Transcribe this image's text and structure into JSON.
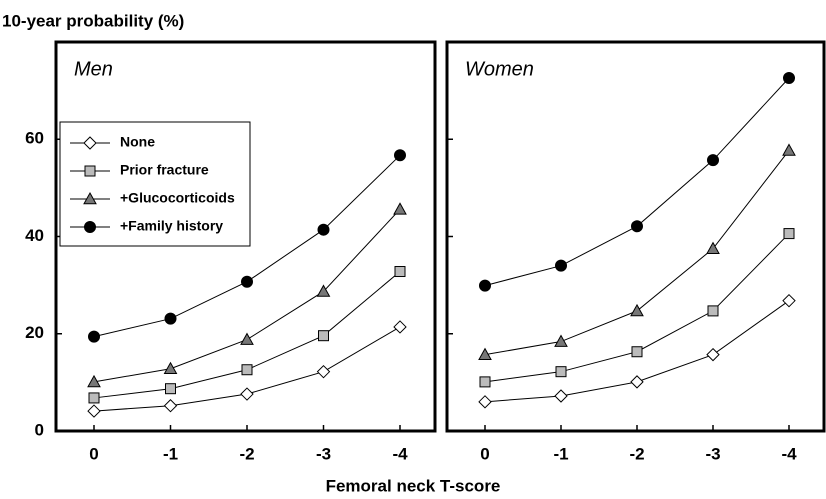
{
  "ylabel": "10-year probability (%)",
  "xlabel": "Femoral neck T-score",
  "chart_data": [
    {
      "type": "line",
      "title": "Men",
      "categories": [
        "0",
        "-1",
        "-2",
        "-3",
        "-4"
      ],
      "ylim": [
        0,
        80
      ],
      "yticks": [
        0,
        20,
        40,
        60
      ],
      "legend": "upper left",
      "series": [
        {
          "name": "None",
          "marker": "diamond",
          "color": "#ffffff",
          "values": [
            4.1,
            5.2,
            7.6,
            12.2,
            21.4
          ]
        },
        {
          "name": "Prior fracture",
          "marker": "square",
          "color": "#bbbbbb",
          "values": [
            6.8,
            8.7,
            12.6,
            19.6,
            32.8
          ]
        },
        {
          "name": "+Glucocorticoids",
          "marker": "triangle",
          "color": "#777777",
          "values": [
            10.1,
            12.8,
            18.8,
            28.7,
            45.6
          ]
        },
        {
          "name": "+Family history",
          "marker": "circle",
          "color": "#000000",
          "values": [
            19.4,
            23.1,
            30.7,
            41.4,
            56.7
          ]
        }
      ]
    },
    {
      "type": "line",
      "title": "Women",
      "categories": [
        "0",
        "-1",
        "-2",
        "-3",
        "-4"
      ],
      "ylim": [
        0,
        80
      ],
      "yticks": [
        0,
        20,
        40,
        60
      ],
      "series": [
        {
          "marker": "diamond",
          "color": "#ffffff",
          "values": [
            6.0,
            7.2,
            10.1,
            15.7,
            26.8
          ]
        },
        {
          "marker": "square",
          "color": "#bbbbbb",
          "values": [
            10.1,
            12.2,
            16.3,
            24.7,
            40.6
          ]
        },
        {
          "marker": "triangle",
          "color": "#777777",
          "values": [
            15.7,
            18.4,
            24.7,
            37.5,
            57.7
          ]
        },
        {
          "marker": "circle",
          "color": "#000000",
          "values": [
            29.9,
            34.0,
            42.1,
            55.7,
            72.6
          ]
        }
      ]
    }
  ]
}
